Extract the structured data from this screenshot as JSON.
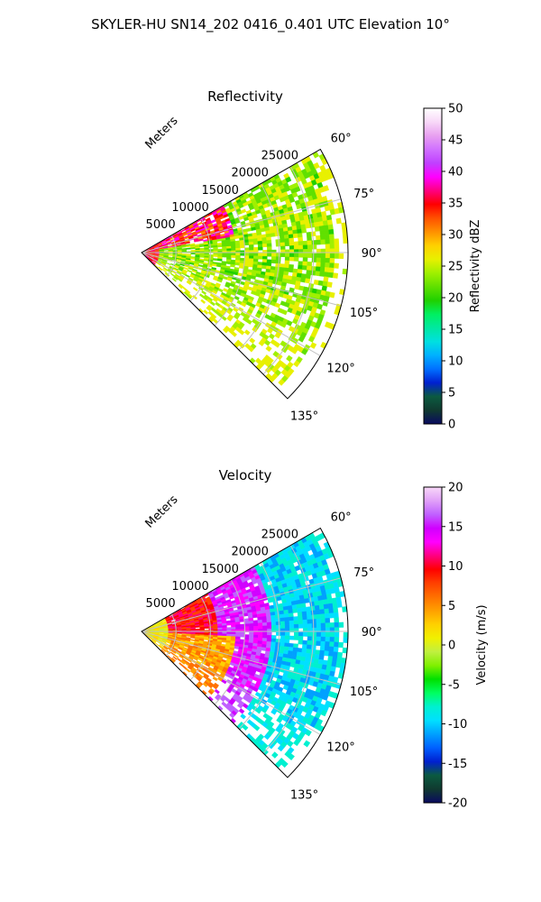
{
  "figure": {
    "title": "SKYLER-HU  SN14_202  0416_0.401 UTC Elevation 10°"
  },
  "chart_data": [
    {
      "type": "heatmap",
      "projection": "polar-sector",
      "title": "Reflectivity",
      "radial_axis_label": "Meters",
      "radial_ticks": [
        "5000",
        "10000",
        "15000",
        "20000",
        "25000"
      ],
      "radial_range": [
        0,
        30000
      ],
      "angle_ticks": [
        "60°",
        "75°",
        "90°",
        "105°",
        "120°",
        "135°"
      ],
      "angle_range_deg": [
        60,
        135
      ],
      "grid": true,
      "colorbar": {
        "label": "Reflectivity dBZ",
        "range": [
          0,
          50
        ],
        "ticks": [
          "0",
          "5",
          "10",
          "15",
          "20",
          "25",
          "30",
          "35",
          "40",
          "45",
          "50"
        ]
      }
    },
    {
      "type": "heatmap",
      "projection": "polar-sector",
      "title": "Velocity",
      "radial_axis_label": "Meters",
      "radial_ticks": [
        "5000",
        "10000",
        "15000",
        "20000",
        "25000"
      ],
      "radial_range": [
        0,
        30000
      ],
      "angle_ticks": [
        "60°",
        "75°",
        "90°",
        "105°",
        "120°",
        "135°"
      ],
      "angle_range_deg": [
        60,
        135
      ],
      "grid": true,
      "colorbar": {
        "label": "Velocity (m/s)",
        "range": [
          -20,
          20
        ],
        "ticks": [
          "-20",
          "-15",
          "-10",
          "-5",
          "0",
          "5",
          "10",
          "15",
          "20"
        ]
      }
    }
  ],
  "colors": {
    "reflectivity_scale": [
      "#0a0a60",
      "#103a30",
      "#0b5a40",
      "#0020d0",
      "#0070ff",
      "#00b0ff",
      "#00e0e0",
      "#00e8a0",
      "#00f060",
      "#20d000",
      "#60e000",
      "#a0f000",
      "#e8f000",
      "#ffd000",
      "#ff9000",
      "#ff5000",
      "#ff0000",
      "#ff0080",
      "#ff00ff",
      "#c040ff",
      "#d070ff",
      "#e8a0f0",
      "#f8d8f8",
      "#ffffff"
    ],
    "velocity_scale": [
      "#0a0a60",
      "#103a30",
      "#0b5a40",
      "#0020d0",
      "#0060ff",
      "#00a0ff",
      "#00e0ff",
      "#00f0d0",
      "#00ff60",
      "#00e000",
      "#80f000",
      "#c0f040",
      "#f0f000",
      "#ffd000",
      "#ffa000",
      "#ff7000",
      "#ff4000",
      "#ff0000",
      "#ff0080",
      "#ff00ff",
      "#d000ff",
      "#c060ff",
      "#e0a0f8",
      "#f8d8f8"
    ]
  }
}
